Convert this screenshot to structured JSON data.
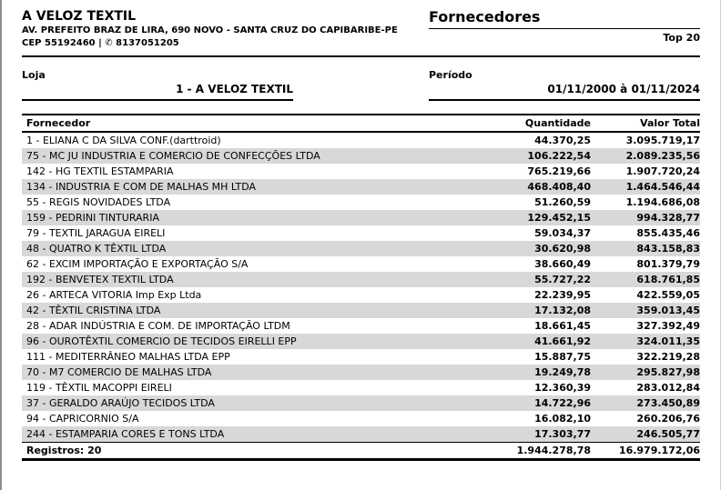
{
  "company": {
    "name": "A VELOZ TEXTIL",
    "address": "AV. PREFEITO BRAZ DE LIRA, 690 NOVO - SANTA CRUZ DO CAPIBARIBE-PE",
    "cep": "CEP 55192460",
    "separator": "|",
    "phone_icon": "✆",
    "phone": "8137051205"
  },
  "report": {
    "title": "Fornecedores",
    "subtitle": "Top 20"
  },
  "filters": {
    "loja_label": "Loja",
    "loja_value": "1 - A VELOZ TEXTIL",
    "periodo_label": "Período",
    "periodo_value": "01/11/2000 à 01/11/2024"
  },
  "table": {
    "headers": [
      "Fornecedor",
      "Quantidade",
      "Valor Total"
    ],
    "rows": [
      {
        "name": "1 - ELIANA C DA SILVA CONF.(darttroid)",
        "quantidade": "44.370,25",
        "valor_total": "3.095.719,17"
      },
      {
        "name": "75 - MC JU INDUSTRIA E COMERCIO DE CONFECÇÕES LTDA",
        "quantidade": "106.222,54",
        "valor_total": "2.089.235,56"
      },
      {
        "name": "142 - HG TEXTIL ESTAMPARIA",
        "quantidade": "765.219,66",
        "valor_total": "1.907.720,24"
      },
      {
        "name": "134 - INDUSTRIA E COM DE MALHAS MH LTDA",
        "quantidade": "468.408,40",
        "valor_total": "1.464.546,44"
      },
      {
        "name": "55 - REGIS NOVIDADES LTDA",
        "quantidade": "51.260,59",
        "valor_total": "1.194.686,08"
      },
      {
        "name": "159 - PEDRINI TINTURARIA",
        "quantidade": "129.452,15",
        "valor_total": "994.328,77"
      },
      {
        "name": "79 - TEXTIL JARAGUA EIRELI",
        "quantidade": "59.034,37",
        "valor_total": "855.435,46"
      },
      {
        "name": "48 - QUATRO K TÊXTIL LTDA",
        "quantidade": "30.620,98",
        "valor_total": "843.158,83"
      },
      {
        "name": "62 - EXCIM IMPORTAÇÃO E EXPORTAÇÃO S/A",
        "quantidade": "38.660,49",
        "valor_total": "801.379,79"
      },
      {
        "name": "192 - BENVETEX TEXTIL LTDA",
        "quantidade": "55.727,22",
        "valor_total": "618.761,85"
      },
      {
        "name": "26 - ARTECA VITORIA Imp Exp Ltda",
        "quantidade": "22.239,95",
        "valor_total": "422.559,05"
      },
      {
        "name": "42 - TÊXTIL CRISTINA LTDA",
        "quantidade": "17.132,08",
        "valor_total": "359.013,45"
      },
      {
        "name": "28 - ADAR INDÚSTRIA E COM. DE IMPORTAÇÃO LTDM",
        "quantidade": "18.661,45",
        "valor_total": "327.392,49"
      },
      {
        "name": "96 - OUROTÊXTIL COMERCIO DE TECIDOS EIRELLI EPP",
        "quantidade": "41.661,92",
        "valor_total": "324.011,35"
      },
      {
        "name": "111 - MEDITERRÂNEO MALHAS LTDA EPP",
        "quantidade": "15.887,75",
        "valor_total": "322.219,28"
      },
      {
        "name": "70 - M7 COMERCIO DE MALHAS LTDA",
        "quantidade": "19.249,78",
        "valor_total": "295.827,98"
      },
      {
        "name": "119 - TÊXTIL MACOPPI EIRELI",
        "quantidade": "12.360,39",
        "valor_total": "283.012,84"
      },
      {
        "name": "37 - GERALDO ARAÚJO TECIDOS LTDA",
        "quantidade": "14.722,96",
        "valor_total": "273.450,89"
      },
      {
        "name": "94 - CAPRICORNIO S/A",
        "quantidade": "16.082,10",
        "valor_total": "260.206,76"
      },
      {
        "name": "244 - ESTAMPARIA CORES E TONS LTDA",
        "quantidade": "17.303,77",
        "valor_total": "246.505,77"
      }
    ],
    "footer": {
      "registros": "Registros: 20",
      "total_quantidade": "1.944.278,78",
      "total_valor": "16.979.172,06"
    }
  },
  "colors": {
    "row_stripe": "#d8d8d8",
    "text": "#000000",
    "background": "#ffffff"
  }
}
